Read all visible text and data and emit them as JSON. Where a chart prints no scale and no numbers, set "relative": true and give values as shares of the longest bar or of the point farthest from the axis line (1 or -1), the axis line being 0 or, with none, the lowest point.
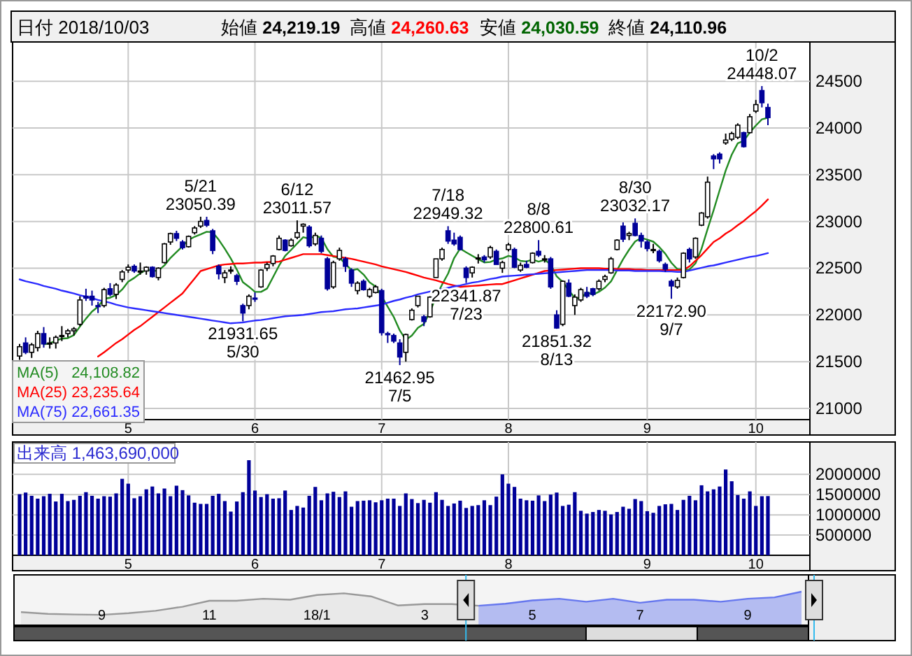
{
  "chart_data": [
    {
      "type": "candlestick",
      "annotations": [
        "日付 2018/10/03",
        "始値 24,219.19",
        "高値 24,260.63",
        "安値 24,030.59",
        "終値 24,110.96",
        "24,108.82",
        "23,235.64",
        "22,661.35",
        {
          "text": "5/21\n23050.39",
          "y": 23050.39
        },
        {
          "text": "21931.65\n5/30",
          "y": 21931.65
        },
        {
          "text": "6/12\n23011.57",
          "y": 23011.57
        },
        {
          "text": "21462.95\n7/5",
          "y": 21462.95
        },
        {
          "text": "7/18\n22949.32",
          "y": 22949.32
        },
        {
          "text": "22341.87\n7/23",
          "y": 22341.87
        },
        {
          "text": "8/8\n22800.61",
          "y": 22800.61
        },
        {
          "text": "21851.32\n8/13",
          "y": 21851.32
        },
        {
          "text": "8/30\n23032.17",
          "y": 23032.17
        },
        {
          "text": "22172.90\n9/7",
          "y": 22172.9
        },
        {
          "text": "10/2\n24448.07",
          "y": 24448.07
        }
      ],
      "categories": [
        null,
        null,
        null,
        null,
        null,
        null,
        null,
        null,
        null,
        null,
        null,
        null,
        null,
        null,
        null,
        null,
        null,
        null,
        "5",
        null,
        null,
        null,
        null,
        null,
        null,
        null,
        null,
        null,
        null,
        null,
        null,
        null,
        null,
        null,
        null,
        null,
        null,
        null,
        null,
        "6",
        null,
        null,
        null,
        null,
        null,
        null,
        null,
        null,
        null,
        null,
        null,
        null,
        null,
        null,
        null,
        null,
        null,
        null,
        null,
        null,
        "7",
        null,
        null,
        null,
        null,
        null,
        null,
        null,
        null,
        null,
        null,
        null,
        null,
        null,
        null,
        null,
        null,
        null,
        null,
        null,
        null,
        "8",
        null,
        null,
        null,
        null,
        null,
        null,
        null,
        null,
        null,
        null,
        null,
        null,
        null,
        null,
        null,
        null,
        null,
        null,
        null,
        null,
        null,
        null,
        "9",
        null,
        null,
        null,
        null,
        null,
        null,
        null,
        null,
        null,
        null,
        null,
        null,
        null,
        null,
        null,
        null,
        null,
        "10",
        null,
        null
      ],
      "ohlc": [
        [
          21560,
          21690,
          21520,
          21660
        ],
        [
          21700,
          21760,
          21580,
          21600
        ],
        [
          21600,
          21700,
          21540,
          21680
        ],
        [
          21650,
          21830,
          21610,
          21800
        ],
        [
          21800,
          21870,
          21650,
          21690
        ],
        [
          21690,
          21760,
          21640,
          21700
        ],
        [
          21700,
          21780,
          21640,
          21760
        ],
        [
          21780,
          21880,
          21720,
          21780
        ],
        [
          21800,
          21850,
          21760,
          21830
        ],
        [
          21830,
          21870,
          21780,
          21850
        ],
        [
          21900,
          22200,
          21880,
          22160
        ],
        [
          22200,
          22280,
          22150,
          22180
        ],
        [
          22200,
          22260,
          22100,
          22160
        ],
        [
          22100,
          22140,
          22020,
          22090
        ],
        [
          22100,
          22290,
          22080,
          22270
        ],
        [
          22280,
          22340,
          22200,
          22220
        ],
        [
          22220,
          22340,
          22170,
          22320
        ],
        [
          22380,
          22480,
          22350,
          22460
        ],
        [
          22480,
          22540,
          22450,
          22510
        ],
        [
          22520,
          22540,
          22450,
          22470
        ],
        [
          22460,
          22560,
          22430,
          22470
        ],
        [
          22470,
          22520,
          22430,
          22510
        ],
        [
          22510,
          22520,
          22400,
          22410
        ],
        [
          22400,
          22510,
          22370,
          22500
        ],
        [
          22560,
          22770,
          22550,
          22760
        ],
        [
          22780,
          22880,
          22750,
          22870
        ],
        [
          22870,
          22900,
          22790,
          22820
        ],
        [
          22780,
          22800,
          22700,
          22720
        ],
        [
          22730,
          22850,
          22720,
          22840
        ],
        [
          22880,
          22950,
          22860,
          22930
        ],
        [
          22950,
          23050.39,
          22930,
          23000
        ],
        [
          23010,
          23050,
          22940,
          22960
        ],
        [
          22900,
          22920,
          22650,
          22690
        ],
        [
          22520,
          22540,
          22380,
          22440
        ],
        [
          22400,
          22480,
          22340,
          22450
        ],
        [
          22480,
          22520,
          22440,
          22480
        ],
        [
          22420,
          22440,
          22320,
          22360
        ],
        [
          22100,
          22120,
          21931.65,
          22020
        ],
        [
          22100,
          22220,
          22060,
          22200
        ],
        [
          22180,
          22240,
          22140,
          22170
        ],
        [
          22300,
          22490,
          22290,
          22480
        ],
        [
          22500,
          22560,
          22470,
          22540
        ],
        [
          22550,
          22640,
          22520,
          22630
        ],
        [
          22700,
          22850,
          22690,
          22820
        ],
        [
          22800,
          22810,
          22680,
          22690
        ],
        [
          22740,
          22820,
          22730,
          22800
        ],
        [
          22830,
          23011.57,
          22810,
          22880
        ],
        [
          22950,
          22980,
          22880,
          22970
        ],
        [
          22940,
          22960,
          22720,
          22740
        ],
        [
          22760,
          22880,
          22740,
          22850
        ],
        [
          22820,
          22850,
          22660,
          22680
        ],
        [
          22600,
          22620,
          22260,
          22280
        ],
        [
          22300,
          22580,
          22280,
          22560
        ],
        [
          22600,
          22720,
          22580,
          22690
        ],
        [
          22600,
          22620,
          22460,
          22520
        ],
        [
          22480,
          22500,
          22300,
          22340
        ],
        [
          22260,
          22360,
          22220,
          22340
        ],
        [
          22360,
          22380,
          22260,
          22270
        ],
        [
          22200,
          22290,
          22180,
          22270
        ],
        [
          22240,
          22320,
          22230,
          22300
        ],
        [
          22260,
          22280,
          21780,
          21810
        ],
        [
          21800,
          21820,
          21700,
          21790
        ],
        [
          21780,
          21800,
          21700,
          21720
        ],
        [
          21700,
          21740,
          21462.95,
          21550
        ],
        [
          21600,
          21800,
          21500,
          21790
        ],
        [
          21950,
          22070,
          21940,
          22050
        ],
        [
          22100,
          22200,
          22080,
          22200
        ],
        [
          21980,
          22000,
          21880,
          21930
        ],
        [
          21980,
          22200,
          21970,
          22190
        ],
        [
          22400,
          22600,
          22400,
          22600
        ],
        [
          22600,
          22720,
          22580,
          22700
        ],
        [
          22900,
          22949.32,
          22760,
          22790
        ],
        [
          22800,
          22880,
          22740,
          22760
        ],
        [
          22830,
          22850,
          22690,
          22700
        ],
        [
          22500,
          22520,
          22341.87,
          22400
        ],
        [
          22450,
          22520,
          22400,
          22510
        ],
        [
          22600,
          22650,
          22550,
          22610
        ],
        [
          22620,
          22640,
          22560,
          22590
        ],
        [
          22620,
          22740,
          22600,
          22720
        ],
        [
          22680,
          22700,
          22540,
          22540
        ],
        [
          22500,
          22580,
          22450,
          22560
        ],
        [
          22700,
          22770,
          22680,
          22750
        ],
        [
          22700,
          22720,
          22500,
          22510
        ],
        [
          22480,
          22560,
          22460,
          22530
        ],
        [
          22540,
          22580,
          22500,
          22510
        ],
        [
          22560,
          22670,
          22550,
          22660
        ],
        [
          22680,
          22800.61,
          22620,
          22640
        ],
        [
          22600,
          22640,
          22560,
          22600
        ],
        [
          22600,
          22620,
          22280,
          22300
        ],
        [
          22000,
          22050,
          21851.32,
          21860
        ],
        [
          21900,
          22370,
          21880,
          22360
        ],
        [
          22340,
          22380,
          22190,
          22200
        ],
        [
          22100,
          22220,
          22000,
          22190
        ],
        [
          22160,
          22290,
          22140,
          22270
        ],
        [
          22240,
          22300,
          22180,
          22200
        ],
        [
          22280,
          22290,
          22200,
          22220
        ],
        [
          22280,
          22380,
          22260,
          22360
        ],
        [
          22380,
          22430,
          22350,
          22410
        ],
        [
          22450,
          22620,
          22440,
          22600
        ],
        [
          22700,
          22810,
          22690,
          22800
        ],
        [
          22950,
          22990,
          22780,
          22810
        ],
        [
          22850,
          22890,
          22800,
          22870
        ],
        [
          22980,
          23032.17,
          22840,
          22850
        ],
        [
          22850,
          22880,
          22720,
          22790
        ],
        [
          22780,
          22800,
          22680,
          22710
        ],
        [
          22700,
          22760,
          22660,
          22700
        ],
        [
          22680,
          22700,
          22560,
          22580
        ],
        [
          22540,
          22560,
          22460,
          22490
        ],
        [
          22360,
          22380,
          22172.9,
          22310
        ],
        [
          22300,
          22400,
          22280,
          22370
        ],
        [
          22400,
          22670,
          22390,
          22660
        ],
        [
          22700,
          22720,
          22560,
          22600
        ],
        [
          22620,
          22830,
          22600,
          22820
        ],
        [
          22960,
          23100,
          22950,
          23090
        ],
        [
          23050,
          23480,
          23030,
          23420
        ],
        [
          23700,
          23720,
          23560,
          23670
        ],
        [
          23720,
          23740,
          23620,
          23670
        ],
        [
          23840,
          23940,
          23820,
          23870
        ],
        [
          23880,
          23960,
          23860,
          23940
        ],
        [
          23900,
          24050,
          23880,
          24030
        ],
        [
          23950,
          23960,
          23790,
          23800
        ],
        [
          23950,
          24150,
          23940,
          24120
        ],
        [
          24180,
          24300,
          24160,
          24250
        ],
        [
          24400,
          24448.07,
          24220,
          24270
        ],
        [
          24219.19,
          24260.63,
          24030.59,
          24110.96
        ]
      ],
      "series": [
        {
          "name": "MA(5)",
          "type": "line",
          "color": "#228b22",
          "values": [
            null,
            null,
            null,
            null,
            21686,
            21694,
            21726,
            21746,
            21752,
            21784,
            21876,
            21960,
            22036,
            22088,
            22172,
            22184,
            22212,
            22272,
            22356,
            22396,
            22446,
            22484,
            22474,
            22472,
            22530,
            22610,
            22672,
            22734,
            22802,
            22836,
            22862,
            22890,
            22884,
            22804,
            22708,
            22604,
            22484,
            22350,
            22302,
            22246,
            22246,
            22282,
            22404,
            22528,
            22632,
            22696,
            22764,
            22832,
            22816,
            22848,
            22824,
            22704,
            22622,
            22612,
            22546,
            22478,
            22490,
            22432,
            22348,
            22304,
            22198,
            22088,
            21978,
            21834,
            21732,
            21780,
            21862,
            21904,
            22032,
            22194,
            22324,
            22442,
            22608,
            22710,
            22670,
            22632,
            22596,
            22562,
            22566,
            22594,
            22604,
            22632,
            22616,
            22578,
            22572,
            22592,
            22570,
            22588,
            22542,
            22412,
            22352,
            22264,
            22182,
            22176,
            22244,
            22216,
            22248,
            22292,
            22358,
            22478,
            22596,
            22698,
            22786,
            22824,
            22806,
            22784,
            22726,
            22654,
            22558,
            22490,
            22482,
            22486,
            22552,
            22708,
            22918,
            23120,
            23334,
            23544,
            23714,
            23836,
            23862,
            23952,
            24026,
            24092,
            24108.82
          ]
        },
        {
          "name": "MA(25)",
          "type": "line",
          "color": "#ff0000",
          "values": [
            null,
            null,
            null,
            null,
            null,
            null,
            null,
            null,
            null,
            null,
            null,
            null,
            null,
            21555,
            21600,
            21650,
            21700,
            21740,
            21790,
            21840,
            21880,
            21930,
            21980,
            22030,
            22080,
            22130,
            22180,
            22230,
            22310,
            22390,
            22470,
            22490,
            22510,
            22530,
            22540,
            22545,
            22550,
            22550,
            22555,
            22560,
            22560,
            22565,
            22565,
            22570,
            22590,
            22610,
            22630,
            22650,
            22650,
            22650,
            22650,
            22640,
            22630,
            22620,
            22610,
            22600,
            22585,
            22570,
            22555,
            22540,
            22520,
            22505,
            22490,
            22475,
            22460,
            22440,
            22420,
            22400,
            22385,
            22370,
            22350,
            22330,
            22315,
            22300,
            22305,
            22310,
            22315,
            22320,
            22325,
            22330,
            22330,
            22350,
            22370,
            22390,
            22410,
            22430,
            22450,
            22470,
            22475,
            22480,
            22485,
            22490,
            22495,
            22500,
            22500,
            22500,
            22500,
            22495,
            22495,
            22490,
            22490,
            22490,
            22485,
            22485,
            22480,
            22480,
            22480,
            22480,
            22480,
            22480,
            22480,
            22520,
            22580,
            22640,
            22710,
            22780,
            22820,
            22870,
            22910,
            22960,
            23005,
            23060,
            23110,
            23170,
            23235.64
          ]
        },
        {
          "name": "MA(75)",
          "type": "line",
          "color": "#2b2bff",
          "values": [
            22380,
            22360,
            22345,
            22330,
            22310,
            22295,
            22280,
            22260,
            22245,
            22230,
            22210,
            22195,
            22180,
            22160,
            22145,
            22130,
            22110,
            22095,
            22080,
            22070,
            22060,
            22050,
            22040,
            22030,
            22020,
            22010,
            22000,
            21990,
            21980,
            21970,
            21960,
            21950,
            21940,
            21930,
            21920,
            21910,
            21915,
            21920,
            21930,
            21940,
            21945,
            21955,
            21965,
            21975,
            21985,
            21990,
            21995,
            22000,
            22010,
            22020,
            22030,
            22035,
            22040,
            22050,
            22060,
            22065,
            22070,
            22080,
            22090,
            22100,
            22110,
            22130,
            22150,
            22165,
            22185,
            22200,
            22220,
            22235,
            22250,
            22265,
            22275,
            22290,
            22305,
            22315,
            22330,
            22345,
            22355,
            22370,
            22385,
            22395,
            22410,
            22415,
            22420,
            22425,
            22430,
            22435,
            22440,
            22445,
            22450,
            22455,
            22460,
            22465,
            22470,
            22475,
            22480,
            22480,
            22480,
            22480,
            22480,
            22475,
            22475,
            22475,
            22470,
            22470,
            22470,
            22470,
            22470,
            22465,
            22465,
            22460,
            22460,
            22475,
            22490,
            22505,
            22520,
            22530,
            22545,
            22560,
            22575,
            22590,
            22605,
            22620,
            22630,
            22645,
            22661.35
          ]
        }
      ],
      "ylim": [
        20880,
        24920
      ],
      "yticks": [
        21000,
        21500,
        22000,
        22500,
        23000,
        23500,
        24000,
        24500
      ],
      "grid": true,
      "legend": "bottom left"
    },
    {
      "type": "bar",
      "annotations": [
        "1,463,690,000"
      ],
      "categories": [
        null,
        null,
        null,
        null,
        null,
        null,
        null,
        null,
        null,
        null,
        null,
        null,
        null,
        null,
        null,
        null,
        null,
        null,
        "5",
        null,
        null,
        null,
        null,
        null,
        null,
        null,
        null,
        null,
        null,
        null,
        null,
        null,
        null,
        null,
        null,
        null,
        null,
        null,
        null,
        "6",
        null,
        null,
        null,
        null,
        null,
        null,
        null,
        null,
        null,
        null,
        null,
        null,
        null,
        null,
        null,
        null,
        null,
        null,
        null,
        null,
        "7",
        null,
        null,
        null,
        null,
        null,
        null,
        null,
        null,
        null,
        null,
        null,
        null,
        null,
        null,
        null,
        null,
        null,
        null,
        null,
        null,
        "8",
        null,
        null,
        null,
        null,
        null,
        null,
        null,
        null,
        null,
        null,
        null,
        null,
        null,
        null,
        null,
        null,
        null,
        null,
        null,
        null,
        null,
        null,
        "9",
        null,
        null,
        null,
        null,
        null,
        null,
        null,
        null,
        null,
        null,
        null,
        null,
        null,
        null,
        null,
        null,
        null,
        "10",
        null,
        null
      ],
      "series": [
        {
          "name": "出来高",
          "color": "#000099",
          "values": [
            1510000,
            1550000,
            1470000,
            1400000,
            1460000,
            1520000,
            1330000,
            1520000,
            1340000,
            1370000,
            1470000,
            1560000,
            1470000,
            1400000,
            1460000,
            1450000,
            1530000,
            1890000,
            1770000,
            1410000,
            1460000,
            1630000,
            1700000,
            1530000,
            1650000,
            1460000,
            1720000,
            1610000,
            1480000,
            1300000,
            1270000,
            1270000,
            1470000,
            1520000,
            1340000,
            1080000,
            1330000,
            1560000,
            2350000,
            1600000,
            1440000,
            1510000,
            1400000,
            1410000,
            1600000,
            1120000,
            1220000,
            1180000,
            1470000,
            1690000,
            1360000,
            1530000,
            1570000,
            1440000,
            1580000,
            1200000,
            1340000,
            1350000,
            1360000,
            1310000,
            1360000,
            1400000,
            1400000,
            1220000,
            1530000,
            1390000,
            1290000,
            1370000,
            1300000,
            1560000,
            1370000,
            1220000,
            1280000,
            1350000,
            1170000,
            1220000,
            1240000,
            1360000,
            1240000,
            1450000,
            2000000,
            1770000,
            1690000,
            1400000,
            1360000,
            1350000,
            1480000,
            1340000,
            1500000,
            1550000,
            1220000,
            1250000,
            1560000,
            1100000,
            1030000,
            1070000,
            1120000,
            1100000,
            1010000,
            1070000,
            1200000,
            1150000,
            1390000,
            1340000,
            1090000,
            1050000,
            1220000,
            1260000,
            1270000,
            1120000,
            1370000,
            1470000,
            1360000,
            1730000,
            1580000,
            1630000,
            1700000,
            2120000,
            1830000,
            1490000,
            1400000,
            1580000,
            1220000,
            1460000,
            1463690
          ]
        }
      ],
      "ylim": [
        0,
        2800000
      ],
      "yticks": [
        500000,
        1000000,
        1500000,
        2000000
      ],
      "grid": true
    },
    {
      "type": "area",
      "relative": true,
      "tick_labels": "x",
      "categories": [
        null,
        null,
        null,
        "9",
        null,
        null,
        null,
        "11",
        null,
        null,
        null,
        "18/1",
        null,
        null,
        null,
        "3",
        null,
        null,
        null,
        "5",
        null,
        null,
        null,
        "7",
        null,
        null,
        null,
        "9",
        null,
        null
      ],
      "series": [
        {
          "color": "#999999",
          "values": [
            0.39,
            0.34,
            0.32,
            0.31,
            0.36,
            0.43,
            0.55,
            0.73,
            0.73,
            0.79,
            0.76,
            0.9,
            0.95,
            0.86,
            0.59,
            0.63,
            0.63,
            0.58,
            null,
            null,
            null,
            null,
            null,
            null,
            null,
            null,
            null,
            null,
            null,
            null
          ]
        },
        {
          "color": "#6677ee",
          "values": [
            null,
            null,
            null,
            null,
            null,
            null,
            null,
            null,
            null,
            null,
            null,
            null,
            null,
            null,
            null,
            null,
            null,
            0.58,
            0.64,
            0.74,
            0.79,
            0.7,
            0.79,
            0.67,
            0.76,
            0.76,
            0.7,
            0.79,
            0.83,
            1
          ]
        }
      ]
    }
  ]
}
